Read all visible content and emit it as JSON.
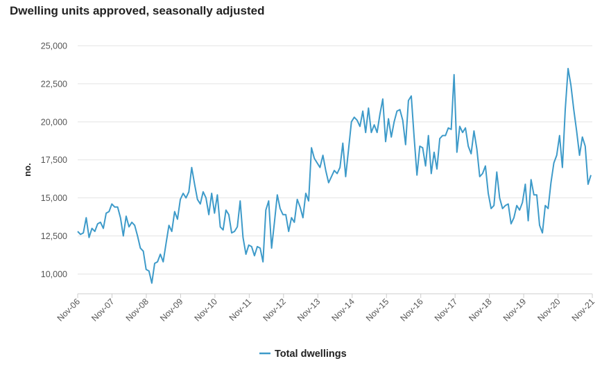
{
  "chart_data": {
    "type": "line",
    "title": "Dwelling units approved, seasonally adjusted",
    "xlabel": "",
    "ylabel": "no.",
    "ylim": [
      8700,
      25000
    ],
    "yticks": [
      10000,
      12500,
      15000,
      17500,
      20000,
      22500,
      25000
    ],
    "ytick_labels": [
      "10,000",
      "12,500",
      "15,000",
      "17,500",
      "20,000",
      "22,500",
      "25,000"
    ],
    "xtick_labels": [
      "Nov-06",
      "Nov-07",
      "Nov-08",
      "Nov-09",
      "Nov-10",
      "Nov-11",
      "Nov-12",
      "Nov-13",
      "Nov-14",
      "Nov-15",
      "Nov-16",
      "Nov-17",
      "Nov-18",
      "Nov-19",
      "Nov-20",
      "Nov-21"
    ],
    "grid": true,
    "legend_position": "bottom",
    "colors": {
      "series": "#3d9ac9",
      "grid": "#e3e3e3",
      "axis": "#cccccc"
    },
    "series": [
      {
        "name": "Total dwellings",
        "values": [
          12800,
          12600,
          12700,
          13700,
          12400,
          13000,
          12800,
          13300,
          13400,
          13000,
          14000,
          14100,
          14600,
          14400,
          14400,
          13700,
          12500,
          13800,
          13100,
          13400,
          13200,
          12500,
          11700,
          11500,
          10300,
          10200,
          9400,
          10700,
          10800,
          11300,
          10800,
          12000,
          13200,
          12800,
          14100,
          13600,
          14900,
          15300,
          15000,
          15400,
          17000,
          15900,
          14900,
          14600,
          15400,
          15000,
          13900,
          15300,
          14000,
          15200,
          13100,
          12900,
          14200,
          13900,
          12700,
          12800,
          13100,
          14800,
          12400,
          11300,
          11900,
          11800,
          11200,
          11800,
          11700,
          10800,
          14200,
          14800,
          11700,
          13400,
          15200,
          14300,
          13900,
          13900,
          12800,
          13700,
          13400,
          14900,
          14400,
          13700,
          15300,
          14800,
          18300,
          17600,
          17300,
          17000,
          17800,
          16800,
          16000,
          16400,
          16800,
          16600,
          17000,
          18600,
          16400,
          18200,
          20000,
          20300,
          20100,
          19700,
          20700,
          19300,
          20900,
          19300,
          19800,
          19300,
          20500,
          21500,
          18700,
          20200,
          19000,
          20000,
          20700,
          20800,
          20100,
          18500,
          21400,
          21700,
          19000,
          16500,
          18400,
          18300,
          17100,
          19100,
          16600,
          18000,
          16900,
          18900,
          19100,
          19100,
          19600,
          19500,
          23100,
          18000,
          19700,
          19300,
          19600,
          18400,
          17900,
          19400,
          18200,
          16400,
          16600,
          17100,
          15300,
          14300,
          14500,
          16700,
          15000,
          14300,
          14500,
          14600,
          13300,
          13700,
          14500,
          14200,
          14700,
          15900,
          13500,
          16200,
          15200,
          15200,
          13200,
          12700,
          14500,
          14300,
          16000,
          17300,
          17800,
          19100,
          17000,
          20800,
          23500,
          22400,
          20800,
          19400,
          17800,
          19000,
          18400,
          15900,
          16500
        ]
      }
    ]
  }
}
